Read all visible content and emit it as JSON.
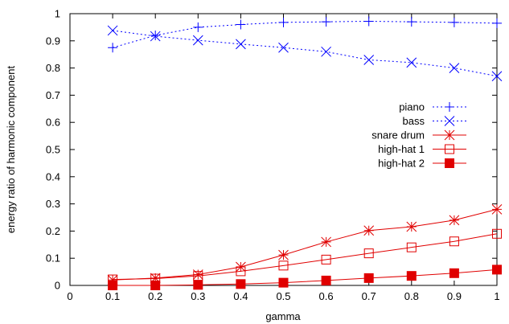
{
  "chart_data": {
    "type": "line",
    "title": "",
    "xlabel": "gamma",
    "ylabel": "energy ratio of harmonic component",
    "xlim": [
      0,
      1
    ],
    "ylim": [
      0,
      1
    ],
    "grid": false,
    "legend_position": "right",
    "x_ticks": [
      "0",
      "0.1",
      "0.2",
      "0.3",
      "0.4",
      "0.5",
      "0.6",
      "0.7",
      "0.8",
      "0.9",
      "1"
    ],
    "y_ticks": [
      "0",
      "0.1",
      "0.2",
      "0.3",
      "0.4",
      "0.5",
      "0.6",
      "0.7",
      "0.8",
      "0.9",
      "1"
    ],
    "x": [
      0.1,
      0.2,
      0.3,
      0.4,
      0.5,
      0.6,
      0.7,
      0.8,
      0.9,
      1.0
    ],
    "series": [
      {
        "name": "piano",
        "color": "#0000ff",
        "dash": "dotted",
        "marker": "plus",
        "values": [
          0.875,
          0.92,
          0.95,
          0.96,
          0.968,
          0.97,
          0.972,
          0.97,
          0.968,
          0.965
        ]
      },
      {
        "name": "bass",
        "color": "#0000ff",
        "dash": "dotted",
        "marker": "cross",
        "values": [
          0.938,
          0.917,
          0.902,
          0.888,
          0.875,
          0.86,
          0.83,
          0.82,
          0.8,
          0.77
        ]
      },
      {
        "name": "snare drum",
        "color": "#e00000",
        "dash": "solid",
        "marker": "star",
        "values": [
          0.02,
          0.027,
          0.04,
          0.068,
          0.112,
          0.16,
          0.202,
          0.216,
          0.24,
          0.28
        ]
      },
      {
        "name": "high-hat 1",
        "color": "#e00000",
        "dash": "solid",
        "marker": "open-square",
        "values": [
          0.022,
          0.025,
          0.035,
          0.052,
          0.073,
          0.095,
          0.118,
          0.14,
          0.162,
          0.19
        ]
      },
      {
        "name": "high-hat 2",
        "color": "#e00000",
        "dash": "solid",
        "marker": "filled-square",
        "values": [
          0.0,
          0.0,
          0.002,
          0.005,
          0.01,
          0.018,
          0.027,
          0.035,
          0.045,
          0.058
        ]
      }
    ]
  }
}
